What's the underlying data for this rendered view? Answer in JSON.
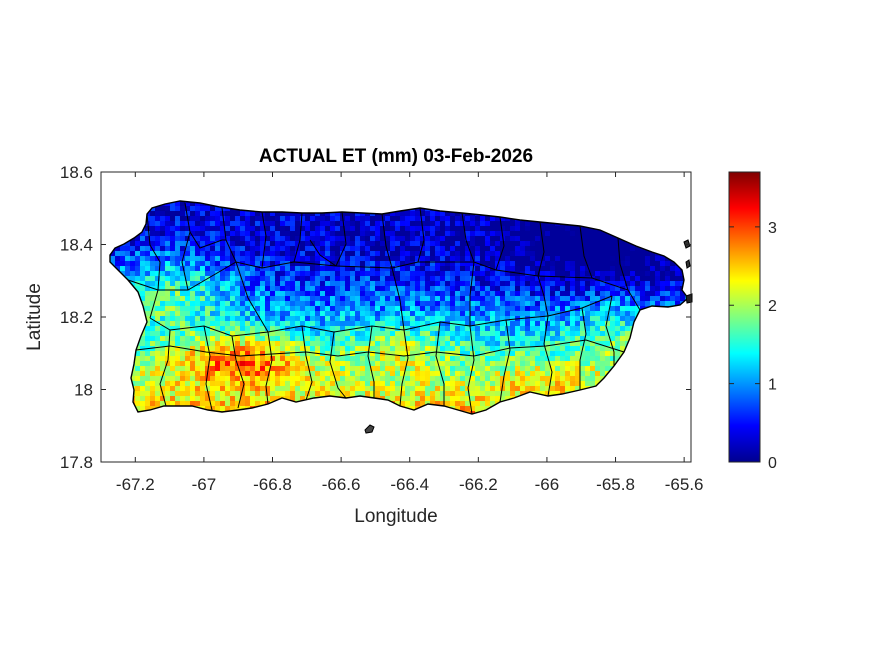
{
  "chart_data": {
    "type": "heatmap",
    "title": "ACTUAL ET (mm) 03-Feb-2026",
    "xlabel": "Longitude",
    "ylabel": "Latitude",
    "xlim": [
      -67.3,
      -65.58
    ],
    "ylim": [
      17.8,
      18.6
    ],
    "x_ticks": [
      -67.2,
      -67.0,
      -66.8,
      -66.6,
      -66.4,
      -66.2,
      -66.0,
      -65.8,
      -65.6
    ],
    "x_tick_labels": [
      "-67.2",
      "-67",
      "-66.8",
      "-66.6",
      "-66.4",
      "-66.2",
      "-66",
      "-65.8",
      "-65.6"
    ],
    "y_ticks": [
      17.8,
      18.0,
      18.2,
      18.4,
      18.6
    ],
    "y_tick_labels": [
      "17.8",
      "18",
      "18.2",
      "18.4",
      "18.6"
    ],
    "colorbar": {
      "colormap": "jet",
      "clim": [
        0,
        3.7
      ],
      "ticks": [
        0,
        1,
        2,
        3
      ],
      "tick_labels": [
        "0",
        "1",
        "2",
        "3"
      ]
    },
    "region": "Puerto Rico",
    "grid": false,
    "pattern": {
      "north_coast_range": [
        0.2,
        0.8
      ],
      "interior_range": [
        1.0,
        1.6
      ],
      "southwest_peak_range": [
        2.8,
        3.5
      ],
      "southeast_range": [
        1.8,
        2.6
      ]
    }
  }
}
